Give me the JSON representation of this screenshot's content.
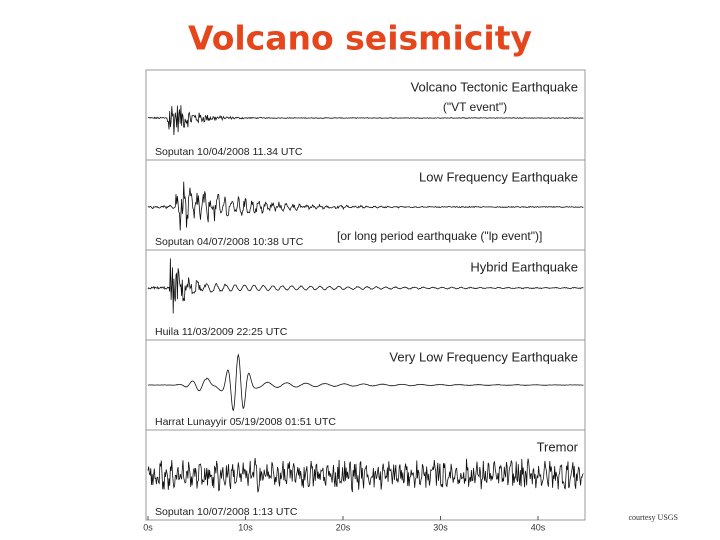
{
  "title": "Volcano seismicity",
  "figure": {
    "panels": [
      {
        "name": "Volcano Tectonic Earthquake",
        "note": "(\"VT event\")",
        "station": "Soputan 10/04/2008 11.34 UTC"
      },
      {
        "name": "Low Frequency Earthquake",
        "note": "[or long period earthquake (\"lp event\")]",
        "station": "Soputan 04/07/2008 10:38 UTC"
      },
      {
        "name": "Hybrid Earthquake",
        "station": "Huila 11/03/2009 22:25 UTC"
      },
      {
        "name": "Very Low Frequency Earthquake",
        "station": "Harrat Lunayyir 05/19/2008 01:51 UTC"
      },
      {
        "name": "Tremor",
        "station": "Soputan 10/07/2008 1:13 UTC"
      }
    ],
    "time_axis": [
      "0s",
      "10s",
      "20s",
      "30s",
      "40s"
    ]
  },
  "credit": "courtesy USGS"
}
